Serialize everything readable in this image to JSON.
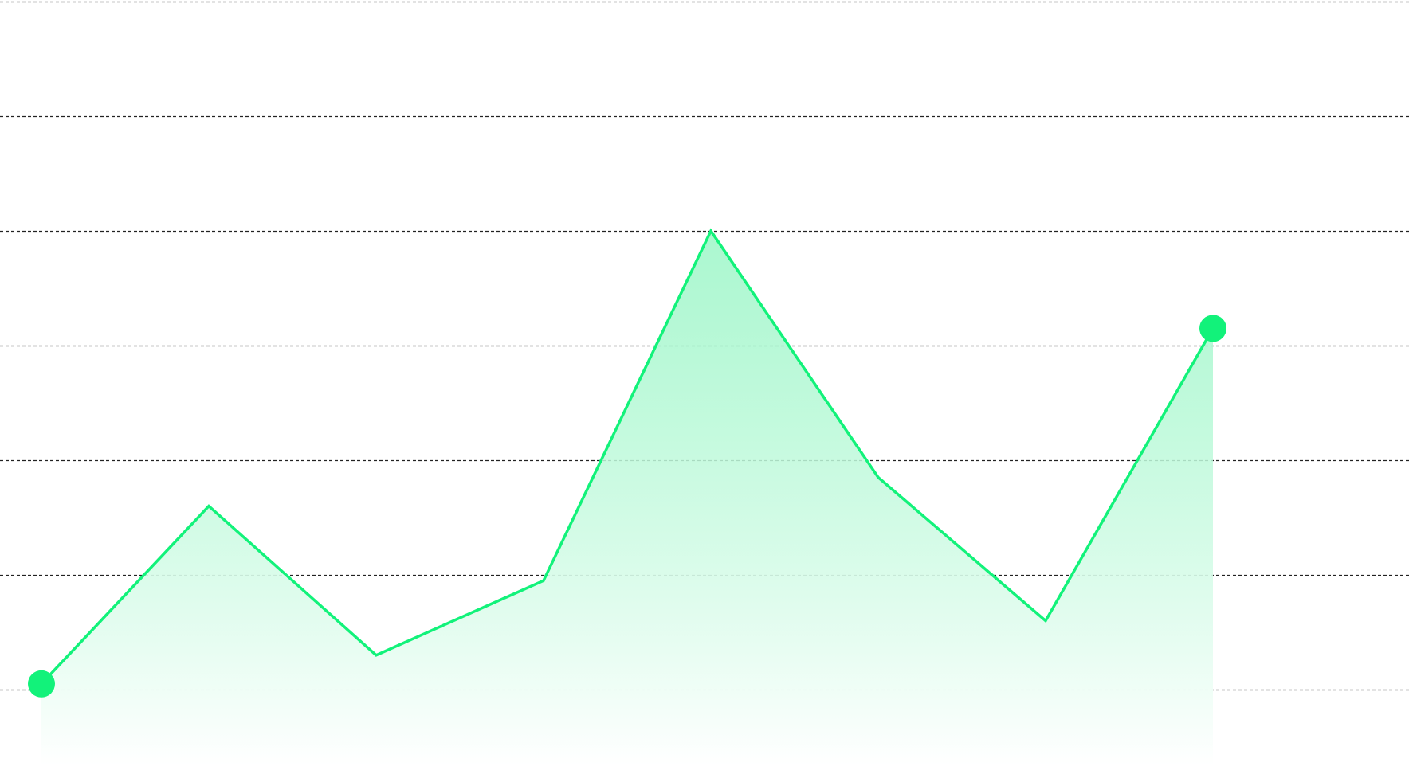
{
  "chart_data": {
    "type": "area",
    "title": "",
    "xlabel": "",
    "ylabel": "",
    "x": [
      0,
      1,
      2,
      3,
      4,
      5,
      6,
      7
    ],
    "series": [
      {
        "values": [
          0.05,
          1.6,
          0.3,
          0.95,
          4.0,
          1.85,
          0.6,
          3.15
        ]
      }
    ],
    "ylim": [
      0,
      6
    ],
    "grid": "horizontal-dashed",
    "line_color": "#12f27a",
    "fill_color_top": "#8ff5c0",
    "fill_color_bottom": "#ffffff",
    "gridline_color": "#222222",
    "endpoint_markers": true
  }
}
